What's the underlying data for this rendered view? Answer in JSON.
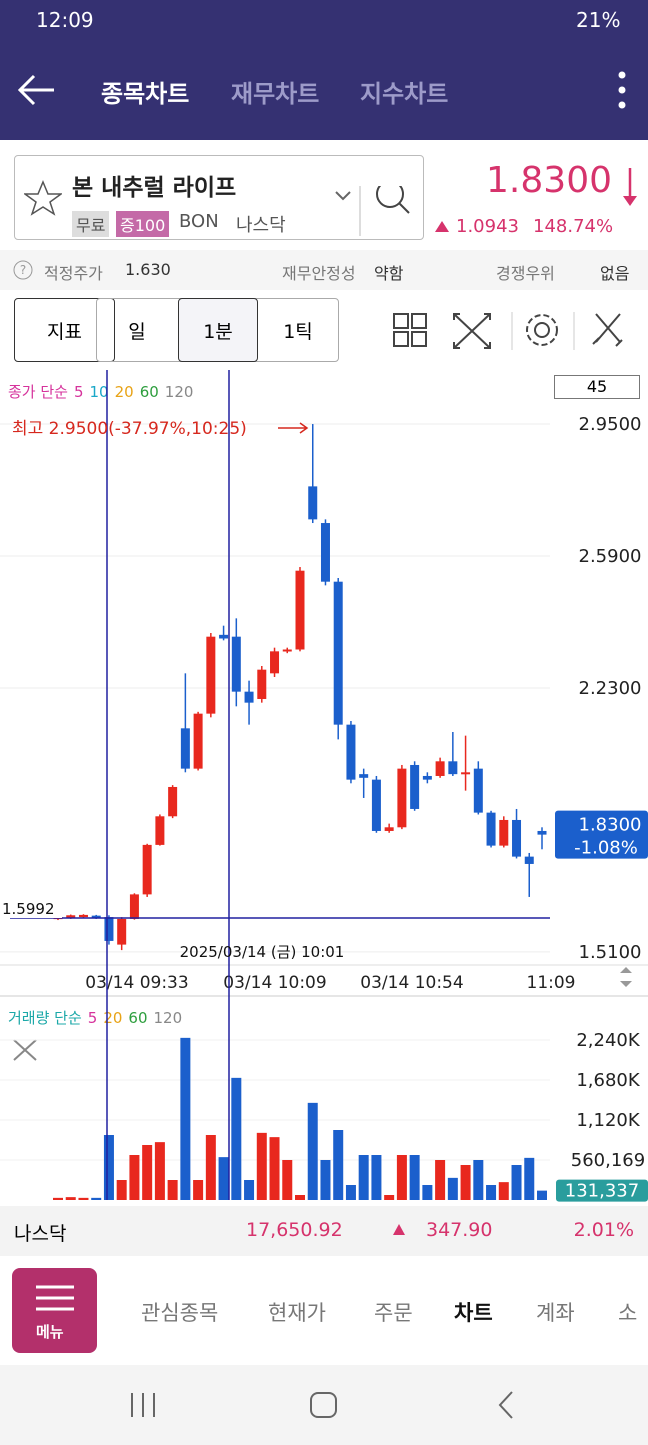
{
  "status_bar": {
    "time": "12:09",
    "battery": "21%"
  },
  "header": {
    "tabs": [
      "종목차트",
      "재무차트",
      "지수차트"
    ]
  },
  "stock": {
    "name": "본 내추럴 라이프",
    "tags": [
      "무료",
      "증100"
    ],
    "ticker": "BON",
    "market": "나스닥",
    "price": "1.8300",
    "change": "1.0943",
    "change_pct": "148.74%"
  },
  "info": {
    "fair_price_label": "적정주가",
    "fair_price": "1.630",
    "stability_label": "재무안정성",
    "stability": "약함",
    "competition_label": "경쟁우위",
    "competition": "없음"
  },
  "toolbar": {
    "indicator": "지표",
    "periods": [
      "일",
      "1분",
      "1틱"
    ]
  },
  "chart": {
    "type": "candlestick",
    "legend_prefix": "종가 단순",
    "ma_periods": [
      5,
      10,
      20,
      60,
      120
    ],
    "ma_colors": [
      "#d6339c",
      "#1ba8c8",
      "#e8a317",
      "#2e9e3e",
      "#888888"
    ],
    "count": "45",
    "max_label": "최고 2.9500(-37.97%,10:25)",
    "crosshair_price": "1.5992",
    "crosshair_time": "2025/03/14 (금) 10:01",
    "time_labels": [
      "03/14 09:33",
      "03/14 10:09",
      "03/14 10:54",
      "11:09"
    ],
    "up_color": "#e8281e",
    "down_color": "#1b5fcc",
    "ylim": [
      1.488,
      3.092
    ],
    "yticks": [
      {
        "value": 2.95,
        "label": "2.9500"
      },
      {
        "value": 2.59,
        "label": "2.5900"
      },
      {
        "value": 2.23,
        "label": "2.2300"
      },
      {
        "value": 1.51,
        "label": "1.5100"
      }
    ],
    "last_price": {
      "value": 1.83,
      "label": "1.8300"
    },
    "last_change": "-1.08%",
    "candles": [
      {
        "open": 1.6,
        "close": 1.605,
        "high": 1.61,
        "low": 1.597
      },
      {
        "open": 1.602,
        "close": 1.61,
        "high": 1.612,
        "low": 1.6
      },
      {
        "open": 1.605,
        "close": 1.611,
        "high": 1.613,
        "low": 1.603
      },
      {
        "open": 1.609,
        "close": 1.603,
        "high": 1.611,
        "low": 1.6
      },
      {
        "open": 1.605,
        "close": 1.54,
        "high": 1.61,
        "low": 1.53
      },
      {
        "open": 1.53,
        "close": 1.6,
        "high": 1.605,
        "low": 1.515
      },
      {
        "open": 1.6,
        "close": 1.667,
        "high": 1.67,
        "low": 1.598
      },
      {
        "open": 1.667,
        "close": 1.802,
        "high": 1.805,
        "low": 1.66
      },
      {
        "open": 1.802,
        "close": 1.88,
        "high": 1.885,
        "low": 1.8
      },
      {
        "open": 1.88,
        "close": 1.96,
        "high": 1.965,
        "low": 1.875
      },
      {
        "open": 2.12,
        "close": 2.01,
        "high": 2.27,
        "low": 2.0
      },
      {
        "open": 2.01,
        "close": 2.16,
        "high": 2.165,
        "low": 2.005
      },
      {
        "open": 2.16,
        "close": 2.37,
        "high": 2.38,
        "low": 2.15
      },
      {
        "open": 2.375,
        "close": 2.365,
        "high": 2.4,
        "low": 2.36
      },
      {
        "open": 2.37,
        "close": 2.22,
        "high": 2.42,
        "low": 2.18
      },
      {
        "open": 2.22,
        "close": 2.19,
        "high": 2.25,
        "low": 2.13
      },
      {
        "open": 2.2,
        "close": 2.28,
        "high": 2.29,
        "low": 2.19
      },
      {
        "open": 2.27,
        "close": 2.33,
        "high": 2.34,
        "low": 2.26
      },
      {
        "open": 2.33,
        "close": 2.335,
        "high": 2.34,
        "low": 2.325
      },
      {
        "open": 2.335,
        "close": 2.55,
        "high": 2.56,
        "low": 2.33
      },
      {
        "open": 2.78,
        "close": 2.69,
        "high": 2.95,
        "low": 2.68
      },
      {
        "open": 2.68,
        "close": 2.52,
        "high": 2.69,
        "low": 2.51
      },
      {
        "open": 2.52,
        "close": 2.13,
        "high": 2.53,
        "low": 2.09
      },
      {
        "open": 2.13,
        "close": 1.98,
        "high": 2.14,
        "low": 1.97
      },
      {
        "open": 1.995,
        "close": 1.985,
        "high": 2.01,
        "low": 1.93
      },
      {
        "open": 1.98,
        "close": 1.84,
        "high": 1.99,
        "low": 1.835
      },
      {
        "open": 1.84,
        "close": 1.85,
        "high": 1.86,
        "low": 1.835
      },
      {
        "open": 1.85,
        "close": 2.01,
        "high": 2.02,
        "low": 1.845
      },
      {
        "open": 2.02,
        "close": 1.9,
        "high": 2.03,
        "low": 1.895
      },
      {
        "open": 1.99,
        "close": 1.98,
        "high": 2.0,
        "low": 1.97
      },
      {
        "open": 1.99,
        "close": 2.03,
        "high": 2.04,
        "low": 1.985
      },
      {
        "open": 2.03,
        "close": 1.995,
        "high": 2.11,
        "low": 1.99
      },
      {
        "open": 1.995,
        "close": 2.0,
        "high": 2.1,
        "low": 1.95
      },
      {
        "open": 2.01,
        "close": 1.89,
        "high": 2.03,
        "low": 1.885
      },
      {
        "open": 1.89,
        "close": 1.8,
        "high": 1.895,
        "low": 1.795
      },
      {
        "open": 1.8,
        "close": 1.87,
        "high": 1.88,
        "low": 1.795
      },
      {
        "open": 1.87,
        "close": 1.77,
        "high": 1.9,
        "low": 1.765
      },
      {
        "open": 1.77,
        "close": 1.75,
        "high": 1.78,
        "low": 1.66
      },
      {
        "open": 1.84,
        "close": 1.83,
        "high": 1.85,
        "low": 1.79
      }
    ],
    "volume_legend_prefix": "거래량 단순",
    "volume_ma_periods": [
      5,
      20,
      60,
      120
    ],
    "volume_ma_colors": [
      "#d6339c",
      "#e8a317",
      "#2e9e3e",
      "#888888"
    ],
    "volume_ylim": [
      0,
      2660000
    ],
    "volume_ticks": [
      {
        "value": 2240000,
        "label": "2,240K"
      },
      {
        "value": 1680000,
        "label": "1,680K"
      },
      {
        "value": 1120000,
        "label": "1,120K"
      },
      {
        "value": 560169,
        "label": "560,169"
      }
    ],
    "volumes": [
      30000,
      40000,
      30000,
      30000,
      910000,
      280000,
      630000,
      770000,
      810000,
      280000,
      2270000,
      280000,
      910000,
      600000,
      1710000,
      280000,
      940000,
      880000,
      560000,
      70000,
      1360000,
      560000,
      980000,
      210000,
      630000,
      630000,
      70000,
      630000,
      630000,
      210000,
      560000,
      310000,
      490000,
      560000,
      210000,
      250000,
      490000,
      590000,
      131337
    ],
    "last_volume": {
      "value": 131337,
      "label": "131,337"
    }
  },
  "index_bar": {
    "name": "나스닥",
    "value": "17,650.92",
    "change": "347.90",
    "change_pct": "2.01%"
  },
  "bottom_nav": {
    "menu": "메뉴",
    "items": [
      "관심종목",
      "현재가",
      "주문",
      "차트",
      "계좌",
      "소"
    ]
  }
}
